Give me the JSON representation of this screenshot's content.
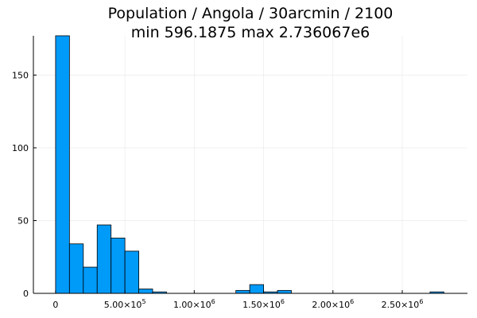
{
  "chart_data": {
    "type": "bar",
    "title": "Population / Angola / 30arcmin / 2100",
    "subtitle": "min 596.1875  max 2.736067e6",
    "xlabel": "",
    "ylabel": "",
    "bin_width": 100000,
    "bins": [
      {
        "start": 0,
        "end": 100000,
        "count": 177
      },
      {
        "start": 100000,
        "end": 200000,
        "count": 34
      },
      {
        "start": 200000,
        "end": 300000,
        "count": 18
      },
      {
        "start": 300000,
        "end": 400000,
        "count": 47
      },
      {
        "start": 400000,
        "end": 500000,
        "count": 38
      },
      {
        "start": 500000,
        "end": 600000,
        "count": 29
      },
      {
        "start": 600000,
        "end": 700000,
        "count": 3
      },
      {
        "start": 700000,
        "end": 800000,
        "count": 1
      },
      {
        "start": 1300000,
        "end": 1400000,
        "count": 2
      },
      {
        "start": 1400000,
        "end": 1500000,
        "count": 6
      },
      {
        "start": 1500000,
        "end": 1600000,
        "count": 1
      },
      {
        "start": 1600000,
        "end": 1700000,
        "count": 2
      },
      {
        "start": 2700000,
        "end": 2800000,
        "count": 1
      }
    ],
    "xlim": [
      -160000,
      2970000
    ],
    "ylim": [
      0,
      177
    ],
    "x_ticks": [
      {
        "value": 0,
        "mantissa": "0",
        "exponent": ""
      },
      {
        "value": 500000,
        "mantissa": "5.00×10",
        "exponent": "5"
      },
      {
        "value": 1000000,
        "mantissa": "1.00×10",
        "exponent": "6"
      },
      {
        "value": 1500000,
        "mantissa": "1.50×10",
        "exponent": "6"
      },
      {
        "value": 2000000,
        "mantissa": "2.00×10",
        "exponent": "6"
      },
      {
        "value": 2500000,
        "mantissa": "2.50×10",
        "exponent": "6"
      }
    ],
    "y_ticks": [
      0,
      50,
      100,
      150
    ],
    "grid": true,
    "legend": "none",
    "bar_color": "#009af9",
    "bar_edge_color": "#000000",
    "grid_color": "#e8e8e8"
  }
}
